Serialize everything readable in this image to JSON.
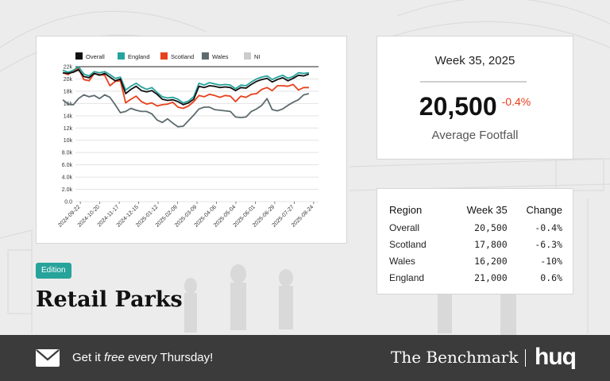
{
  "chart_data": {
    "type": "line",
    "legend_position": "top",
    "grid": "horizontal",
    "y_ticks": [
      "0.0",
      "2.0k",
      "4.0k",
      "6.0k",
      "8.0k",
      "10k",
      "12k",
      "14k",
      "16k",
      "18k",
      "20k",
      "22k"
    ],
    "ylim": [
      0,
      22000
    ],
    "x_ticks": [
      "2024-09-22",
      "2024-10-20",
      "2024-11-17",
      "2024-12-15",
      "2025-01-12",
      "2025-02-09",
      "2025-03-09",
      "2025-04-06",
      "2025-05-04",
      "2025-06-01",
      "2025-06-29",
      "2025-07-27",
      "2025-08-24"
    ],
    "x_start": "2024-09-15",
    "x_end": "2025-08-31",
    "series": [
      {
        "name": "Overall",
        "color": "#111111",
        "values": [
          21000,
          20900,
          21100,
          21500,
          20400,
          20200,
          20900,
          20600,
          20900,
          20300,
          19700,
          20000,
          17600,
          18300,
          18800,
          18100,
          17900,
          18100,
          17500,
          16700,
          16500,
          16600,
          16300,
          15800,
          16100,
          16700,
          18800,
          18600,
          18900,
          18800,
          18600,
          18700,
          18600,
          18100,
          18600,
          18500,
          19100,
          19600,
          19900,
          20100,
          19500,
          19900,
          20200,
          19700,
          20100,
          20600,
          20500,
          20800
        ]
      },
      {
        "name": "England",
        "color": "#26a39b",
        "values": [
          21400,
          21100,
          21400,
          22000,
          20800,
          20500,
          21200,
          21000,
          21200,
          20700,
          20100,
          20300,
          18200,
          18800,
          19300,
          18700,
          18300,
          18600,
          17800,
          17100,
          16900,
          17000,
          16700,
          16100,
          16400,
          17100,
          19300,
          19000,
          19400,
          19200,
          19000,
          19100,
          19000,
          18400,
          19000,
          18900,
          19500,
          20000,
          20300,
          20500,
          19900,
          20300,
          20600,
          20100,
          20400,
          21000,
          20900,
          21000
        ]
      },
      {
        "name": "Scotland",
        "color": "#e8401c",
        "values": [
          21000,
          20700,
          21300,
          21700,
          19900,
          19700,
          20900,
          20700,
          20600,
          18900,
          19600,
          19700,
          16100,
          16700,
          17200,
          16300,
          15900,
          16100,
          15600,
          15800,
          15900,
          16200,
          15400,
          15200,
          15600,
          16300,
          17300,
          17100,
          17500,
          17300,
          17000,
          17300,
          17200,
          16300,
          17200,
          17000,
          17500,
          17600,
          18300,
          18600,
          18100,
          18900,
          18900,
          18800,
          19100,
          18200,
          18600,
          18600
        ]
      },
      {
        "name": "Wales",
        "color": "#5d6b6e",
        "values": [
          16600,
          15900,
          15800,
          16800,
          17400,
          17100,
          17300,
          16800,
          17400,
          17000,
          15800,
          14500,
          14700,
          15200,
          14900,
          14700,
          14700,
          14300,
          13300,
          12900,
          13500,
          12800,
          12200,
          12300,
          13200,
          14100,
          15100,
          15400,
          15400,
          15000,
          14900,
          14800,
          14700,
          13800,
          13700,
          13800,
          14700,
          15100,
          15700,
          16800,
          15000,
          14800,
          15100,
          15700,
          16200,
          16600,
          17400,
          17600
        ]
      },
      {
        "name": "NI",
        "color": "#cccccc",
        "values": []
      }
    ]
  },
  "kpi": {
    "week": "Week 35, 2025",
    "value": "20,500",
    "change": "-0.4%",
    "label": "Average Footfall",
    "change_color": "#e8401c"
  },
  "region_table": {
    "headers": [
      "Region",
      "Week 35",
      "Change"
    ],
    "rows": [
      [
        "Overall",
        "20,500",
        "-0.4%"
      ],
      [
        "Scotland",
        "17,800",
        "-6.3%"
      ],
      [
        "Wales",
        "16,200",
        "-10%"
      ],
      [
        "England",
        "21,000",
        "0.6%"
      ]
    ]
  },
  "edition_badge": "Edition",
  "page_title": "Retail Parks",
  "footer": {
    "cta_before": "Get it ",
    "cta_em": "free",
    "cta_after": " every Thursday!",
    "mail_icon": "envelope-icon",
    "brand_name": "The Benchmark",
    "logo_text": "huq"
  },
  "colors": {
    "accent": "#26a39b",
    "footer_bg": "#3b3b3b",
    "negative": "#e8401c"
  }
}
